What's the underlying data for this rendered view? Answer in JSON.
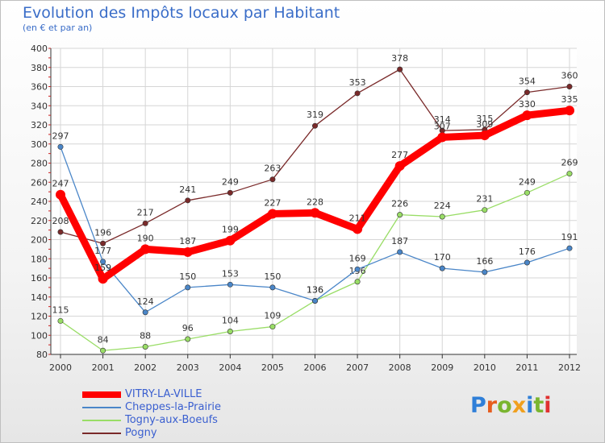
{
  "title": "Evolution des Impôts locaux par Habitant",
  "subtitle": "(en € et par an)",
  "brand": "Proxiti",
  "brand_colors": [
    "#2f7fd8",
    "#e65d1e",
    "#7ab530",
    "#f0a01e",
    "#2f7fd8",
    "#7ab530",
    "#e03030"
  ],
  "chart_data": {
    "type": "line",
    "x": [
      "2000",
      "2001",
      "2002",
      "2003",
      "2004",
      "2005",
      "2006",
      "2007",
      "2008",
      "2009",
      "2010",
      "2011",
      "2012"
    ],
    "ylim": [
      80,
      400
    ],
    "yticks": [
      80,
      100,
      120,
      140,
      160,
      180,
      200,
      220,
      240,
      260,
      280,
      300,
      320,
      340,
      360,
      380,
      400
    ],
    "grid": true,
    "legend_position": "bottom-left",
    "series": [
      {
        "name": "VITRY-LA-VILLE",
        "color": "#ff0000",
        "values": [
          247,
          159,
          190,
          187,
          199,
          227,
          228,
          211,
          277,
          307,
          309,
          330,
          335
        ]
      },
      {
        "name": "Cheppes-la-Prairie",
        "color": "#4a86c8",
        "values": [
          297,
          177,
          124,
          150,
          153,
          150,
          136,
          169,
          187,
          170,
          166,
          176,
          191
        ]
      },
      {
        "name": "Togny-aux-Boeufs",
        "color": "#99dd66",
        "values": [
          115,
          84,
          88,
          96,
          104,
          109,
          136,
          156,
          226,
          224,
          231,
          249,
          269
        ]
      },
      {
        "name": "Pogny",
        "color": "#7a2a2a",
        "values": [
          208,
          196,
          217,
          241,
          249,
          263,
          319,
          353,
          378,
          314,
          315,
          354,
          360
        ]
      }
    ]
  }
}
